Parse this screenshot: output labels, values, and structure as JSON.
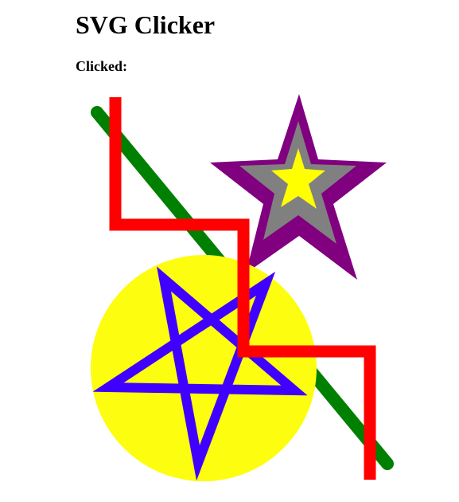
{
  "page": {
    "title": "SVG Clicker",
    "clicked_label": "Clicked:",
    "clicked_value": ""
  },
  "shapes": [
    {
      "name": "green-line",
      "type": "line",
      "stroke": "#008000"
    },
    {
      "name": "purple-star",
      "type": "star",
      "fill": "#ffff00",
      "stroke": "#808080",
      "outline": "#800080"
    },
    {
      "name": "yellow-circle",
      "type": "circle",
      "fill": "#ffff0f"
    },
    {
      "name": "blue-pentagram",
      "type": "pentagram",
      "stroke": "#4000ff"
    },
    {
      "name": "red-polyline",
      "type": "polyline",
      "stroke": "#ff0000"
    }
  ]
}
